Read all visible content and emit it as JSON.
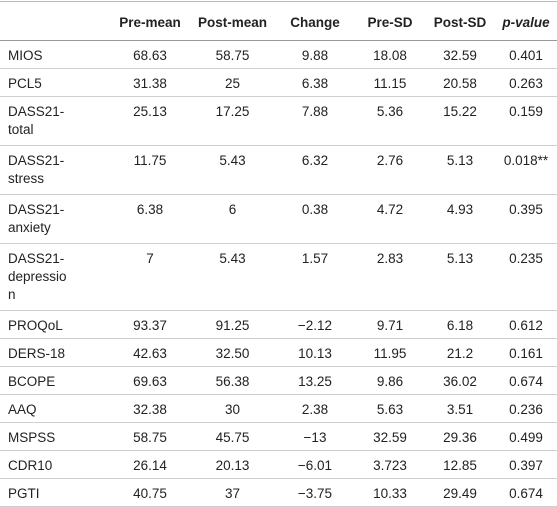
{
  "table": {
    "header": [
      "",
      "Pre-mean",
      "Post-mean",
      "Change",
      "Pre-SD",
      "Post-SD",
      "p-value"
    ],
    "rows": [
      [
        "MIOS",
        "68.63",
        "58.75",
        "9.88",
        "18.08",
        "32.59",
        "0.401"
      ],
      [
        "PCL5",
        "31.38",
        "25",
        "6.38",
        "11.15",
        "20.58",
        "0.263"
      ],
      [
        "DASS21-total",
        "25.13",
        "17.25",
        "7.88",
        "5.36",
        "15.22",
        "0.159"
      ],
      [
        "DASS21-stress",
        "11.75",
        "5.43",
        "6.32",
        "2.76",
        "5.13",
        "0.018**"
      ],
      [
        "DASS21-anxiety",
        "6.38",
        "6",
        "0.38",
        "4.72",
        "4.93",
        "0.395"
      ],
      [
        "DASS21-depression",
        "7",
        "5.43",
        "1.57",
        "2.83",
        "5.13",
        "0.235"
      ],
      [
        "PROQoL",
        "93.37",
        "91.25",
        "−2.12",
        "9.71",
        "6.18",
        "0.612"
      ],
      [
        "DERS-18",
        "42.63",
        "32.50",
        "10.13",
        "11.95",
        "21.2",
        "0.161"
      ],
      [
        "BCOPE",
        "69.63",
        "56.38",
        "13.25",
        "9.86",
        "36.02",
        "0.674"
      ],
      [
        "AAQ",
        "32.38",
        "30",
        "2.38",
        "5.63",
        "3.51",
        "0.236"
      ],
      [
        "MSPSS",
        "58.75",
        "45.75",
        "−13",
        "32.59",
        "29.36",
        "0.499"
      ],
      [
        "CDR10",
        "26.14",
        "20.13",
        "−6.01",
        "3.723",
        "12.85",
        "0.397"
      ],
      [
        "PGTI",
        "40.75",
        "37",
        "−3.75",
        "10.33",
        "29.49",
        "0.674"
      ]
    ]
  }
}
